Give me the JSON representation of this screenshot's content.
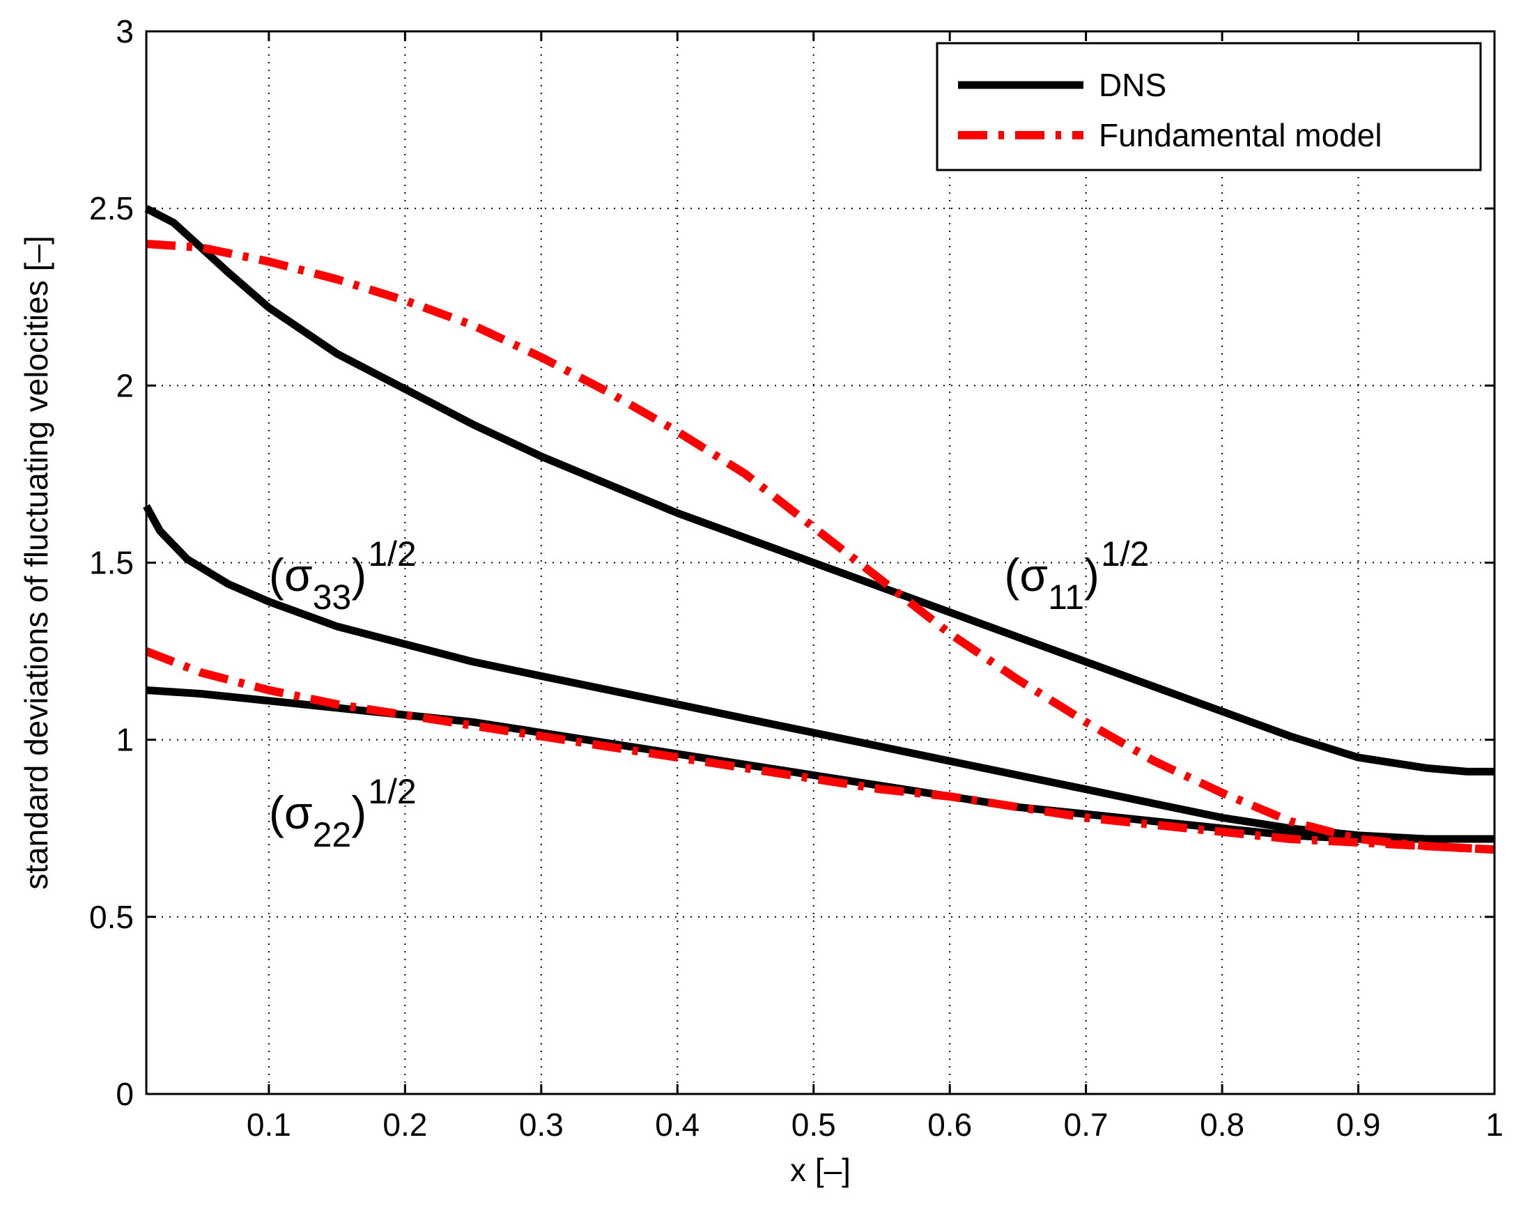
{
  "chart_data": {
    "type": "line",
    "title": "",
    "xlabel": "x [–]",
    "ylabel": "standard deviations of fluctuating velocities [–]",
    "xlim": [
      0.01,
      1.0
    ],
    "ylim": [
      0,
      3
    ],
    "grid": true,
    "legend_position": "top-right",
    "x_ticks": [
      0.1,
      0.2,
      0.3,
      0.4,
      0.5,
      0.6,
      0.7,
      0.8,
      0.9,
      1.0
    ],
    "x_tick_labels": [
      "0.1",
      "0.2",
      "0.3",
      "0.4",
      "0.5",
      "0.6",
      "0.7",
      "0.8",
      "0.9",
      "1"
    ],
    "y_ticks": [
      0,
      0.5,
      1,
      1.5,
      2,
      2.5,
      3
    ],
    "y_tick_labels": [
      "0",
      "0.5",
      "1",
      "1.5",
      "2",
      "2.5",
      "3"
    ],
    "legend": [
      {
        "label": "DNS",
        "color": "#000000",
        "style": "solid"
      },
      {
        "label": "Fundamental model",
        "color": "#ff0000",
        "style": "dash-dot"
      }
    ],
    "series": [
      {
        "group": "DNS",
        "color": "#000000",
        "style": "solid",
        "x": [
          0.01,
          0.03,
          0.05,
          0.07,
          0.1,
          0.15,
          0.2,
          0.25,
          0.3,
          0.35,
          0.4,
          0.45,
          0.5,
          0.55,
          0.6,
          0.65,
          0.7,
          0.75,
          0.8,
          0.85,
          0.9,
          0.95,
          0.98,
          1.0
        ],
        "y": [
          2.5,
          2.46,
          2.39,
          2.32,
          2.22,
          2.09,
          1.99,
          1.89,
          1.8,
          1.72,
          1.64,
          1.57,
          1.5,
          1.43,
          1.36,
          1.29,
          1.22,
          1.15,
          1.08,
          1.01,
          0.95,
          0.92,
          0.91,
          0.91
        ]
      },
      {
        "group": "DNS",
        "color": "#000000",
        "style": "solid",
        "x": [
          0.01,
          0.02,
          0.04,
          0.07,
          0.1,
          0.15,
          0.2,
          0.25,
          0.3,
          0.35,
          0.4,
          0.45,
          0.5,
          0.55,
          0.6,
          0.65,
          0.7,
          0.75,
          0.8,
          0.85,
          0.9,
          0.95,
          1.0
        ],
        "y": [
          1.66,
          1.59,
          1.51,
          1.44,
          1.39,
          1.32,
          1.27,
          1.22,
          1.18,
          1.14,
          1.1,
          1.06,
          1.02,
          0.98,
          0.94,
          0.9,
          0.86,
          0.82,
          0.78,
          0.75,
          0.73,
          0.72,
          0.72
        ]
      },
      {
        "group": "DNS",
        "color": "#000000",
        "style": "solid",
        "x": [
          0.01,
          0.05,
          0.1,
          0.15,
          0.2,
          0.25,
          0.3,
          0.35,
          0.4,
          0.45,
          0.5,
          0.55,
          0.6,
          0.65,
          0.7,
          0.75,
          0.8,
          0.85,
          0.9,
          0.95,
          1.0
        ],
        "y": [
          1.14,
          1.13,
          1.11,
          1.09,
          1.07,
          1.05,
          1.02,
          0.99,
          0.96,
          0.93,
          0.9,
          0.87,
          0.84,
          0.81,
          0.79,
          0.77,
          0.75,
          0.73,
          0.72,
          0.72,
          0.72
        ]
      },
      {
        "group": "Fundamental model",
        "color": "#ff0000",
        "style": "dash-dot",
        "x": [
          0.01,
          0.05,
          0.1,
          0.15,
          0.2,
          0.25,
          0.3,
          0.35,
          0.4,
          0.45,
          0.5,
          0.55,
          0.6,
          0.65,
          0.7,
          0.75,
          0.8,
          0.85,
          0.9,
          0.95,
          1.0
        ],
        "y": [
          2.4,
          2.39,
          2.35,
          2.3,
          2.24,
          2.17,
          2.08,
          1.98,
          1.87,
          1.75,
          1.6,
          1.45,
          1.3,
          1.17,
          1.05,
          0.94,
          0.85,
          0.77,
          0.72,
          0.7,
          0.69
        ]
      },
      {
        "group": "Fundamental model",
        "color": "#ff0000",
        "style": "dash-dot",
        "x": [
          0.01,
          0.05,
          0.1,
          0.15,
          0.2,
          0.25,
          0.3,
          0.35,
          0.4,
          0.45,
          0.5,
          0.55,
          0.6,
          0.65,
          0.7,
          0.75,
          0.8,
          0.85,
          0.9,
          0.95,
          1.0
        ],
        "y": [
          1.25,
          1.19,
          1.14,
          1.1,
          1.07,
          1.04,
          1.01,
          0.98,
          0.95,
          0.92,
          0.89,
          0.86,
          0.84,
          0.81,
          0.78,
          0.76,
          0.74,
          0.72,
          0.71,
          0.7,
          0.69
        ]
      }
    ],
    "annotations": [
      {
        "base": "(σ",
        "sub": "11",
        "close": ")",
        "sup": "1/2",
        "x": 0.64,
        "y": 1.42
      },
      {
        "base": "(σ",
        "sub": "33",
        "close": ")",
        "sup": "1/2",
        "x": 0.1,
        "y": 1.42
      },
      {
        "base": "(σ",
        "sub": "22",
        "close": ")",
        "sup": "1/2",
        "x": 0.1,
        "y": 0.75
      }
    ]
  }
}
